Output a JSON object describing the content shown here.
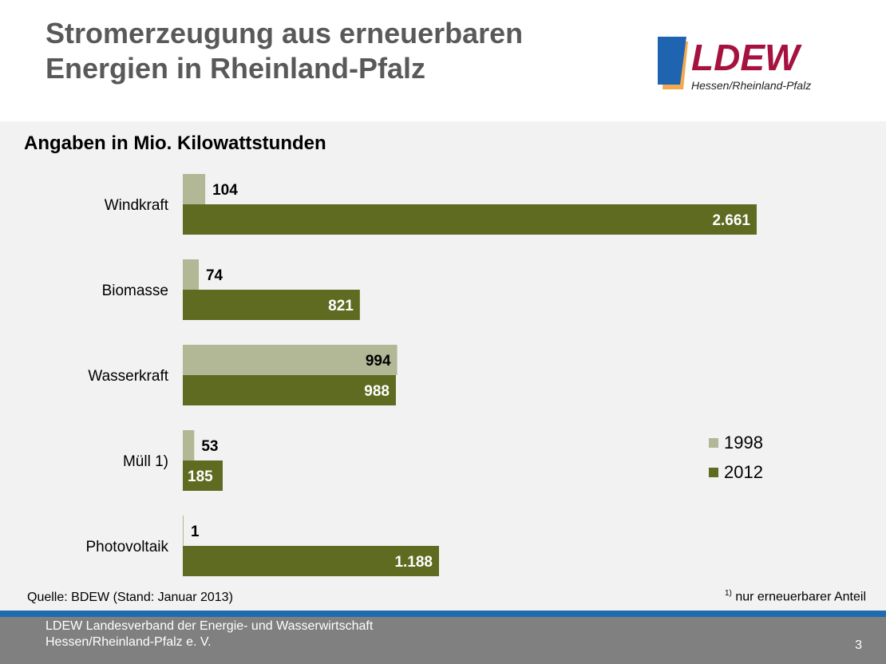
{
  "header": {
    "title_line1": "Stromerzeugung aus erneuerbaren",
    "title_line2": "Energien in Rheinland-Pfalz",
    "logo_text": "LDEW",
    "logo_subtext": "Hessen/Rheinland-Pfalz"
  },
  "chart_data": {
    "type": "bar",
    "orientation": "horizontal",
    "title": "Angaben in Mio. Kilowattstunden",
    "categories": [
      "Windkraft",
      "Biomasse",
      "Wasserkraft",
      "Müll 1)",
      "Photovoltaik"
    ],
    "series": [
      {
        "name": "1998",
        "values": [
          104,
          74,
          994,
          53,
          1
        ],
        "labels": [
          "104",
          "74",
          "994",
          "53",
          "1"
        ],
        "color": "#b2b796"
      },
      {
        "name": "2012",
        "values": [
          2661,
          821,
          988,
          185,
          1188
        ],
        "labels": [
          "2.661",
          "821",
          "988",
          "185",
          "1.188"
        ],
        "color": "#5e6b20"
      }
    ],
    "xlim": [
      0,
      2661
    ],
    "legend": "right"
  },
  "source": "Quelle: BDEW (Stand: Januar 2013)",
  "note": {
    "mark": "1)",
    "text": " nur erneuerbarer Anteil"
  },
  "footer": {
    "line1": "LDEW Landesverband der Energie- und Wasserwirtschaft",
    "line2": "Hessen/Rheinland-Pfalz  e. V.",
    "page": "3"
  }
}
